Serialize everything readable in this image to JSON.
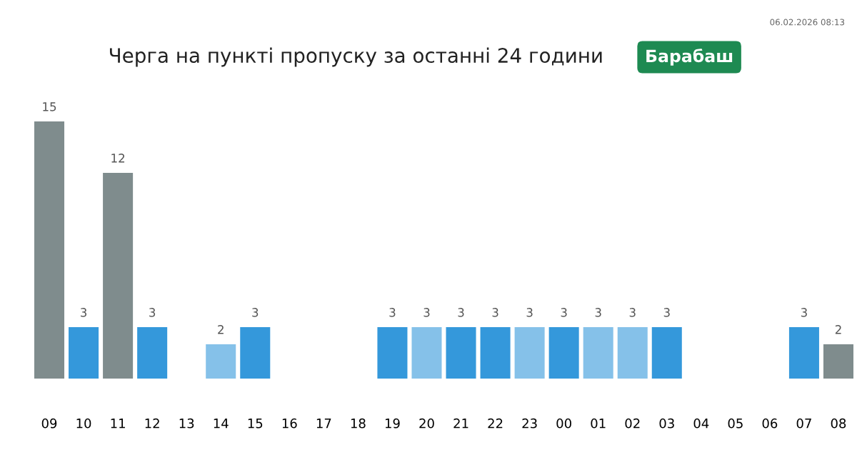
{
  "chart_data": {
    "type": "bar",
    "title": "Черга на пункті пропуску за останні 24 години",
    "subtitle": "Барабаш",
    "annotations": [
      "06.02.2026 08:13"
    ],
    "categories": [
      "09",
      "10",
      "11",
      "12",
      "13",
      "14",
      "15",
      "16",
      "17",
      "18",
      "19",
      "20",
      "21",
      "22",
      "23",
      "00",
      "01",
      "02",
      "03",
      "04",
      "05",
      "06",
      "07",
      "08"
    ],
    "values": [
      15,
      3,
      12,
      3,
      null,
      2,
      3,
      null,
      null,
      null,
      3,
      3,
      3,
      3,
      3,
      3,
      3,
      3,
      3,
      null,
      null,
      null,
      3,
      2
    ],
    "colors": [
      "#7f8c8d",
      "#3498db",
      "#7f8c8d",
      "#3498db",
      "#3498db",
      "#85c1e9",
      "#3498db",
      "#3498db",
      "#3498db",
      "#3498db",
      "#3498db",
      "#85c1e9",
      "#3498db",
      "#3498db",
      "#85c1e9",
      "#3498db",
      "#85c1e9",
      "#85c1e9",
      "#3498db",
      "#3498db",
      "#3498db",
      "#3498db",
      "#3498db",
      "#7f8c8d"
    ],
    "data_labels": true,
    "grid": false,
    "legend": false
  }
}
